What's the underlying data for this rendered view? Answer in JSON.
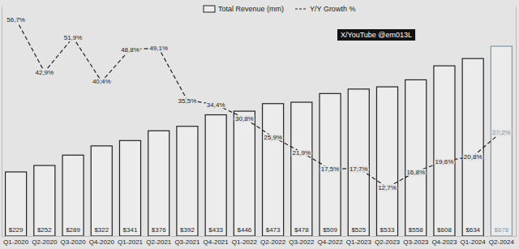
{
  "chart_data": {
    "type": "bar",
    "annotation": "X/YouTube @em013L",
    "categories": [
      "Q1-2020",
      "Q2-2020",
      "Q3-2020",
      "Q4-2020",
      "Q1-2021",
      "Q2-2021",
      "Q3-2021",
      "Q4-2021",
      "Q1-2022",
      "Q2-2022",
      "Q3-2022",
      "Q4-2022",
      "Q1-2023",
      "Q2-2023",
      "Q3-2023",
      "Q4-2023",
      "Q1-2024",
      "Q2-2024"
    ],
    "series": [
      {
        "name": "Total Revenue (mm)",
        "type": "bar",
        "values": [
          229,
          252,
          289,
          322,
          341,
          376,
          392,
          433,
          446,
          473,
          478,
          509,
          525,
          533,
          558,
          608,
          634,
          678
        ],
        "value_labels": [
          "$229",
          "$252",
          "$289",
          "$322",
          "$341",
          "$376",
          "$392",
          "$433",
          "$446",
          "$473",
          "$478",
          "$509",
          "$525",
          "$533",
          "$558",
          "$608",
          "$634",
          "$678"
        ],
        "colors": [
          "#222222",
          "#222222",
          "#222222",
          "#222222",
          "#222222",
          "#222222",
          "#222222",
          "#222222",
          "#222222",
          "#222222",
          "#222222",
          "#222222",
          "#222222",
          "#222222",
          "#222222",
          "#222222",
          "#222222",
          "#7f98ad"
        ]
      },
      {
        "name": "Y/Y Growth %",
        "type": "line",
        "axis": "y2",
        "line_style": "dashed",
        "color": "#222222",
        "values": [
          56.7,
          42.9,
          51.9,
          40.4,
          48.8,
          49.1,
          35.5,
          34.4,
          30.8,
          25.9,
          21.9,
          17.5,
          17.7,
          12.7,
          16.8,
          19.6,
          20.8,
          27.2
        ],
        "value_labels": [
          "56,7%",
          "42,9%",
          "51,9%",
          "40,4%",
          "48,8%",
          "49,1%",
          "35,5%",
          "34,4%",
          "30,8%",
          "25,9%",
          "21,9%",
          "17,5%",
          "17,7%",
          "12,7%",
          "16,8%",
          "19,6%",
          "20,8%",
          "27,2%"
        ]
      }
    ],
    "ylim": [
      0,
      820
    ],
    "y2lim": [
      0,
      60
    ],
    "data_labels": true,
    "tick_labels": "x",
    "grid": false,
    "legend": "top"
  }
}
